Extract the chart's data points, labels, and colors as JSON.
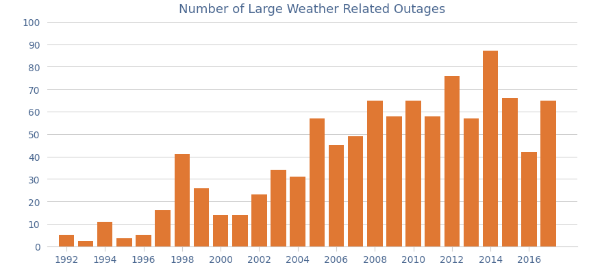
{
  "title": "Number of Large Weather Related Outages",
  "title_color": "#4a6790",
  "bar_color": "#E07833",
  "background_color": "#ffffff",
  "years": [
    1992,
    1993,
    1994,
    1995,
    1996,
    1997,
    1998,
    1999,
    2000,
    2001,
    2002,
    2003,
    2004,
    2005,
    2006,
    2007,
    2008,
    2009,
    2010,
    2011,
    2012,
    2013,
    2014,
    2015,
    2016,
    2017
  ],
  "values": [
    5,
    2.5,
    11,
    3.5,
    5,
    16,
    41,
    26,
    14,
    14,
    23,
    34,
    31,
    57,
    45,
    49,
    65,
    58,
    65,
    58,
    76,
    57,
    87,
    66,
    42,
    65
  ],
  "yticks": [
    0,
    10,
    20,
    30,
    40,
    50,
    60,
    70,
    80,
    90,
    100
  ],
  "xtick_labels": [
    "1992",
    "1994",
    "1996",
    "1998",
    "2000",
    "2002",
    "2004",
    "2006",
    "2008",
    "2010",
    "2012",
    "2014",
    "2016"
  ],
  "xtick_positions": [
    1992,
    1994,
    1996,
    1998,
    2000,
    2002,
    2004,
    2006,
    2008,
    2010,
    2012,
    2014,
    2016
  ],
  "ylim": [
    0,
    100
  ],
  "xlim_left": 1991.0,
  "xlim_right": 2018.5,
  "grid_color": "#cccccc",
  "tick_color": "#4a6790",
  "bar_width": 0.8,
  "title_fontsize": 13,
  "tick_fontsize": 10
}
